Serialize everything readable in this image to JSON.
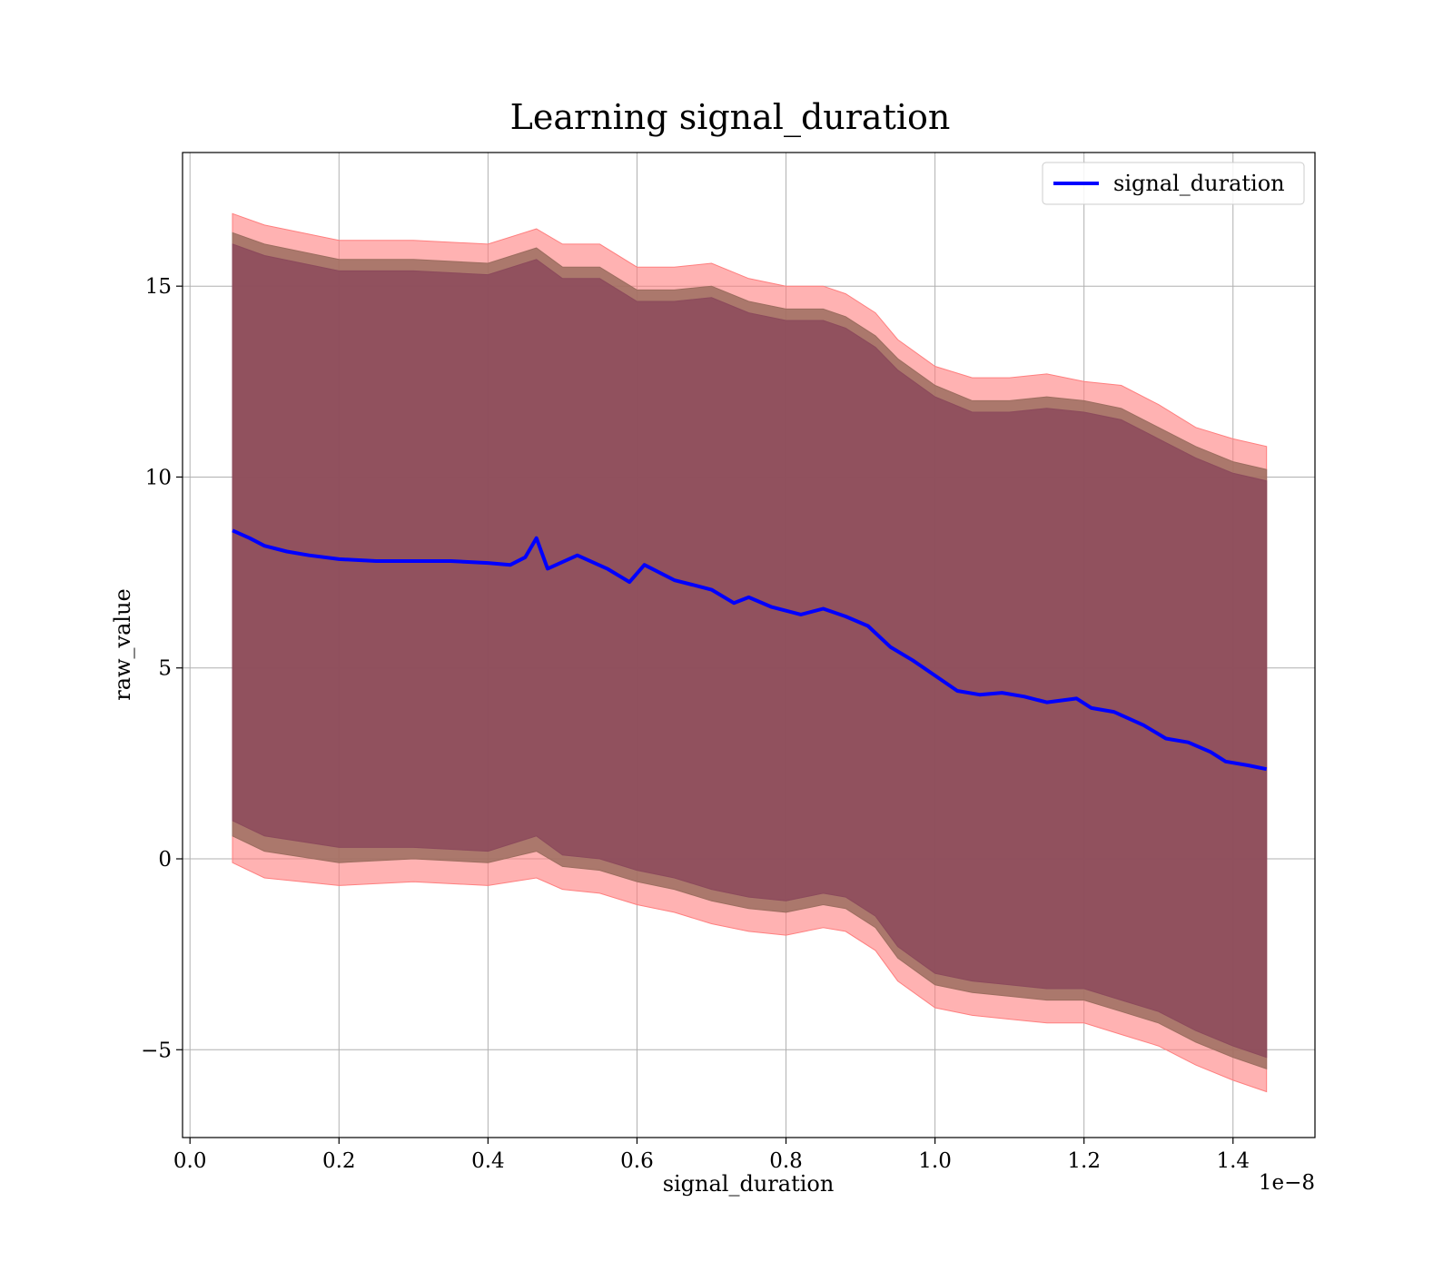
{
  "chart_data": {
    "type": "line",
    "title": "Learning signal_duration",
    "xlabel": "signal_duration",
    "ylabel": "raw_value",
    "x_offset_label": "1e−8",
    "xlim": [
      -0.01,
      1.51
    ],
    "ylim": [
      -7.3,
      18.5
    ],
    "x_ticks": [
      0.0,
      0.2,
      0.4,
      0.6,
      0.8,
      1.0,
      1.2,
      1.4
    ],
    "x_tick_labels": [
      "0.0",
      "0.2",
      "0.4",
      "0.6",
      "0.8",
      "1.0",
      "1.2",
      "1.4"
    ],
    "y_ticks": [
      -5,
      0,
      5,
      10,
      15
    ],
    "y_tick_labels": [
      "−5",
      "0",
      "5",
      "10",
      "15"
    ],
    "grid": true,
    "legend_position": "top-right",
    "series": [
      {
        "name": "signal_duration",
        "color": "#0000ff",
        "x": [
          0.057,
          0.08,
          0.1,
          0.13,
          0.16,
          0.2,
          0.25,
          0.3,
          0.35,
          0.4,
          0.43,
          0.45,
          0.465,
          0.48,
          0.52,
          0.56,
          0.59,
          0.61,
          0.65,
          0.7,
          0.73,
          0.75,
          0.78,
          0.8,
          0.82,
          0.85,
          0.88,
          0.91,
          0.94,
          0.97,
          1.0,
          1.03,
          1.06,
          1.09,
          1.12,
          1.15,
          1.19,
          1.21,
          1.24,
          1.28,
          1.31,
          1.34,
          1.37,
          1.39,
          1.42,
          1.445
        ],
        "values": [
          8.6,
          8.4,
          8.2,
          8.05,
          7.95,
          7.85,
          7.8,
          7.8,
          7.8,
          7.75,
          7.7,
          7.9,
          8.4,
          7.6,
          7.95,
          7.6,
          7.25,
          7.7,
          7.3,
          7.05,
          6.7,
          6.85,
          6.6,
          6.5,
          6.4,
          6.55,
          6.35,
          6.1,
          5.55,
          5.2,
          4.8,
          4.4,
          4.3,
          4.35,
          4.25,
          4.1,
          4.2,
          3.95,
          3.85,
          3.5,
          3.15,
          3.05,
          2.8,
          2.55,
          2.45,
          2.35
        ]
      }
    ],
    "bands": [
      {
        "color": "#ff7f7f",
        "x": [
          0.057,
          0.1,
          0.2,
          0.3,
          0.4,
          0.465,
          0.5,
          0.55,
          0.6,
          0.65,
          0.7,
          0.75,
          0.8,
          0.85,
          0.88,
          0.92,
          0.95,
          1.0,
          1.05,
          1.1,
          1.15,
          1.2,
          1.25,
          1.3,
          1.35,
          1.4,
          1.445
        ],
        "upper": [
          16.9,
          16.6,
          16.2,
          16.2,
          16.1,
          16.5,
          16.1,
          16.1,
          15.5,
          15.5,
          15.6,
          15.2,
          15.0,
          15.0,
          14.8,
          14.3,
          13.6,
          12.9,
          12.6,
          12.6,
          12.7,
          12.5,
          12.4,
          11.9,
          11.3,
          11.0,
          10.8
        ],
        "lower": [
          -0.1,
          -0.5,
          -0.7,
          -0.6,
          -0.7,
          -0.5,
          -0.8,
          -0.9,
          -1.2,
          -1.4,
          -1.7,
          -1.9,
          -2.0,
          -1.8,
          -1.9,
          -2.4,
          -3.2,
          -3.9,
          -4.1,
          -4.2,
          -4.3,
          -4.3,
          -4.6,
          -4.9,
          -5.4,
          -5.8,
          -6.1
        ]
      },
      {
        "color": "#9c6d5f",
        "x": [
          0.057,
          0.1,
          0.2,
          0.3,
          0.4,
          0.465,
          0.5,
          0.55,
          0.6,
          0.65,
          0.7,
          0.75,
          0.8,
          0.85,
          0.88,
          0.92,
          0.95,
          1.0,
          1.05,
          1.1,
          1.15,
          1.2,
          1.25,
          1.3,
          1.35,
          1.4,
          1.445
        ],
        "upper": [
          16.4,
          16.1,
          15.7,
          15.7,
          15.6,
          16.0,
          15.5,
          15.5,
          14.9,
          14.9,
          15.0,
          14.6,
          14.4,
          14.4,
          14.2,
          13.7,
          13.1,
          12.4,
          12.0,
          12.0,
          12.1,
          12.0,
          11.8,
          11.3,
          10.8,
          10.4,
          10.2
        ],
        "lower": [
          0.6,
          0.2,
          -0.1,
          0.0,
          -0.1,
          0.2,
          -0.2,
          -0.3,
          -0.6,
          -0.8,
          -1.1,
          -1.3,
          -1.4,
          -1.2,
          -1.3,
          -1.8,
          -2.6,
          -3.3,
          -3.5,
          -3.6,
          -3.7,
          -3.7,
          -4.0,
          -4.3,
          -4.8,
          -5.2,
          -5.5
        ]
      },
      {
        "color": "#8c4a5c",
        "x": [
          0.057,
          0.1,
          0.2,
          0.3,
          0.4,
          0.465,
          0.5,
          0.55,
          0.6,
          0.65,
          0.7,
          0.75,
          0.8,
          0.85,
          0.88,
          0.92,
          0.95,
          1.0,
          1.05,
          1.1,
          1.15,
          1.2,
          1.25,
          1.3,
          1.35,
          1.4,
          1.445
        ],
        "upper": [
          16.1,
          15.8,
          15.4,
          15.4,
          15.3,
          15.7,
          15.2,
          15.2,
          14.6,
          14.6,
          14.7,
          14.3,
          14.1,
          14.1,
          13.9,
          13.4,
          12.8,
          12.1,
          11.7,
          11.7,
          11.8,
          11.7,
          11.5,
          11.0,
          10.5,
          10.1,
          9.9
        ],
        "lower": [
          1.0,
          0.6,
          0.3,
          0.3,
          0.2,
          0.6,
          0.1,
          0.0,
          -0.3,
          -0.5,
          -0.8,
          -1.0,
          -1.1,
          -0.9,
          -1.0,
          -1.5,
          -2.3,
          -3.0,
          -3.2,
          -3.3,
          -3.4,
          -3.4,
          -3.7,
          -4.0,
          -4.5,
          -4.9,
          -5.2
        ]
      }
    ]
  }
}
